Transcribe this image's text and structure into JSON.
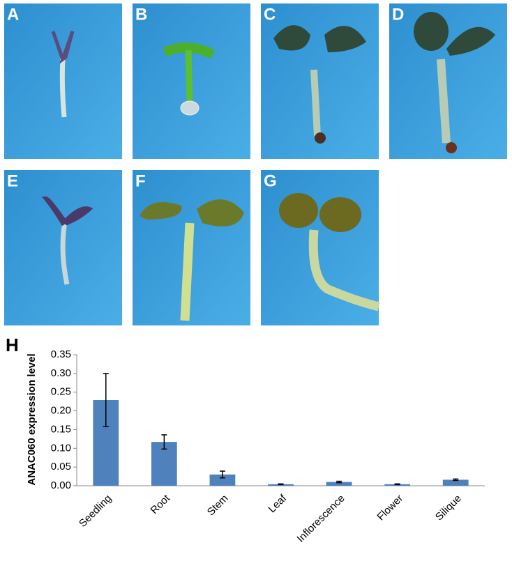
{
  "panel_labels": [
    "A",
    "B",
    "C",
    "D",
    "E",
    "F",
    "G",
    "H"
  ],
  "chart_data": {
    "type": "bar",
    "y_label": "ANAC060 expression level",
    "categories": [
      "Seedling",
      "Root",
      "Stem",
      "Leaf",
      "Inflorescence",
      "Flower",
      "Silique"
    ],
    "values": [
      0.229,
      0.117,
      0.03,
      0.004,
      0.01,
      0.004,
      0.016
    ],
    "errors": [
      0.071,
      0.019,
      0.009,
      0.001,
      0.002,
      0.001,
      0.002
    ],
    "color": "#4f81bd",
    "ylim": [
      0,
      0.35
    ],
    "yticks": [
      {
        "value": 0,
        "label": "0.00"
      },
      {
        "value": 0.05,
        "label": "0.05"
      },
      {
        "value": 0.1,
        "label": "0.10"
      },
      {
        "value": 0.15,
        "label": "0.15"
      },
      {
        "value": 0.2,
        "label": "0.20"
      },
      {
        "value": 0.25,
        "label": "0.25"
      },
      {
        "value": 0.3,
        "label": "0.30"
      },
      {
        "value": 0.35,
        "label": "0.35"
      }
    ],
    "grid": false
  }
}
